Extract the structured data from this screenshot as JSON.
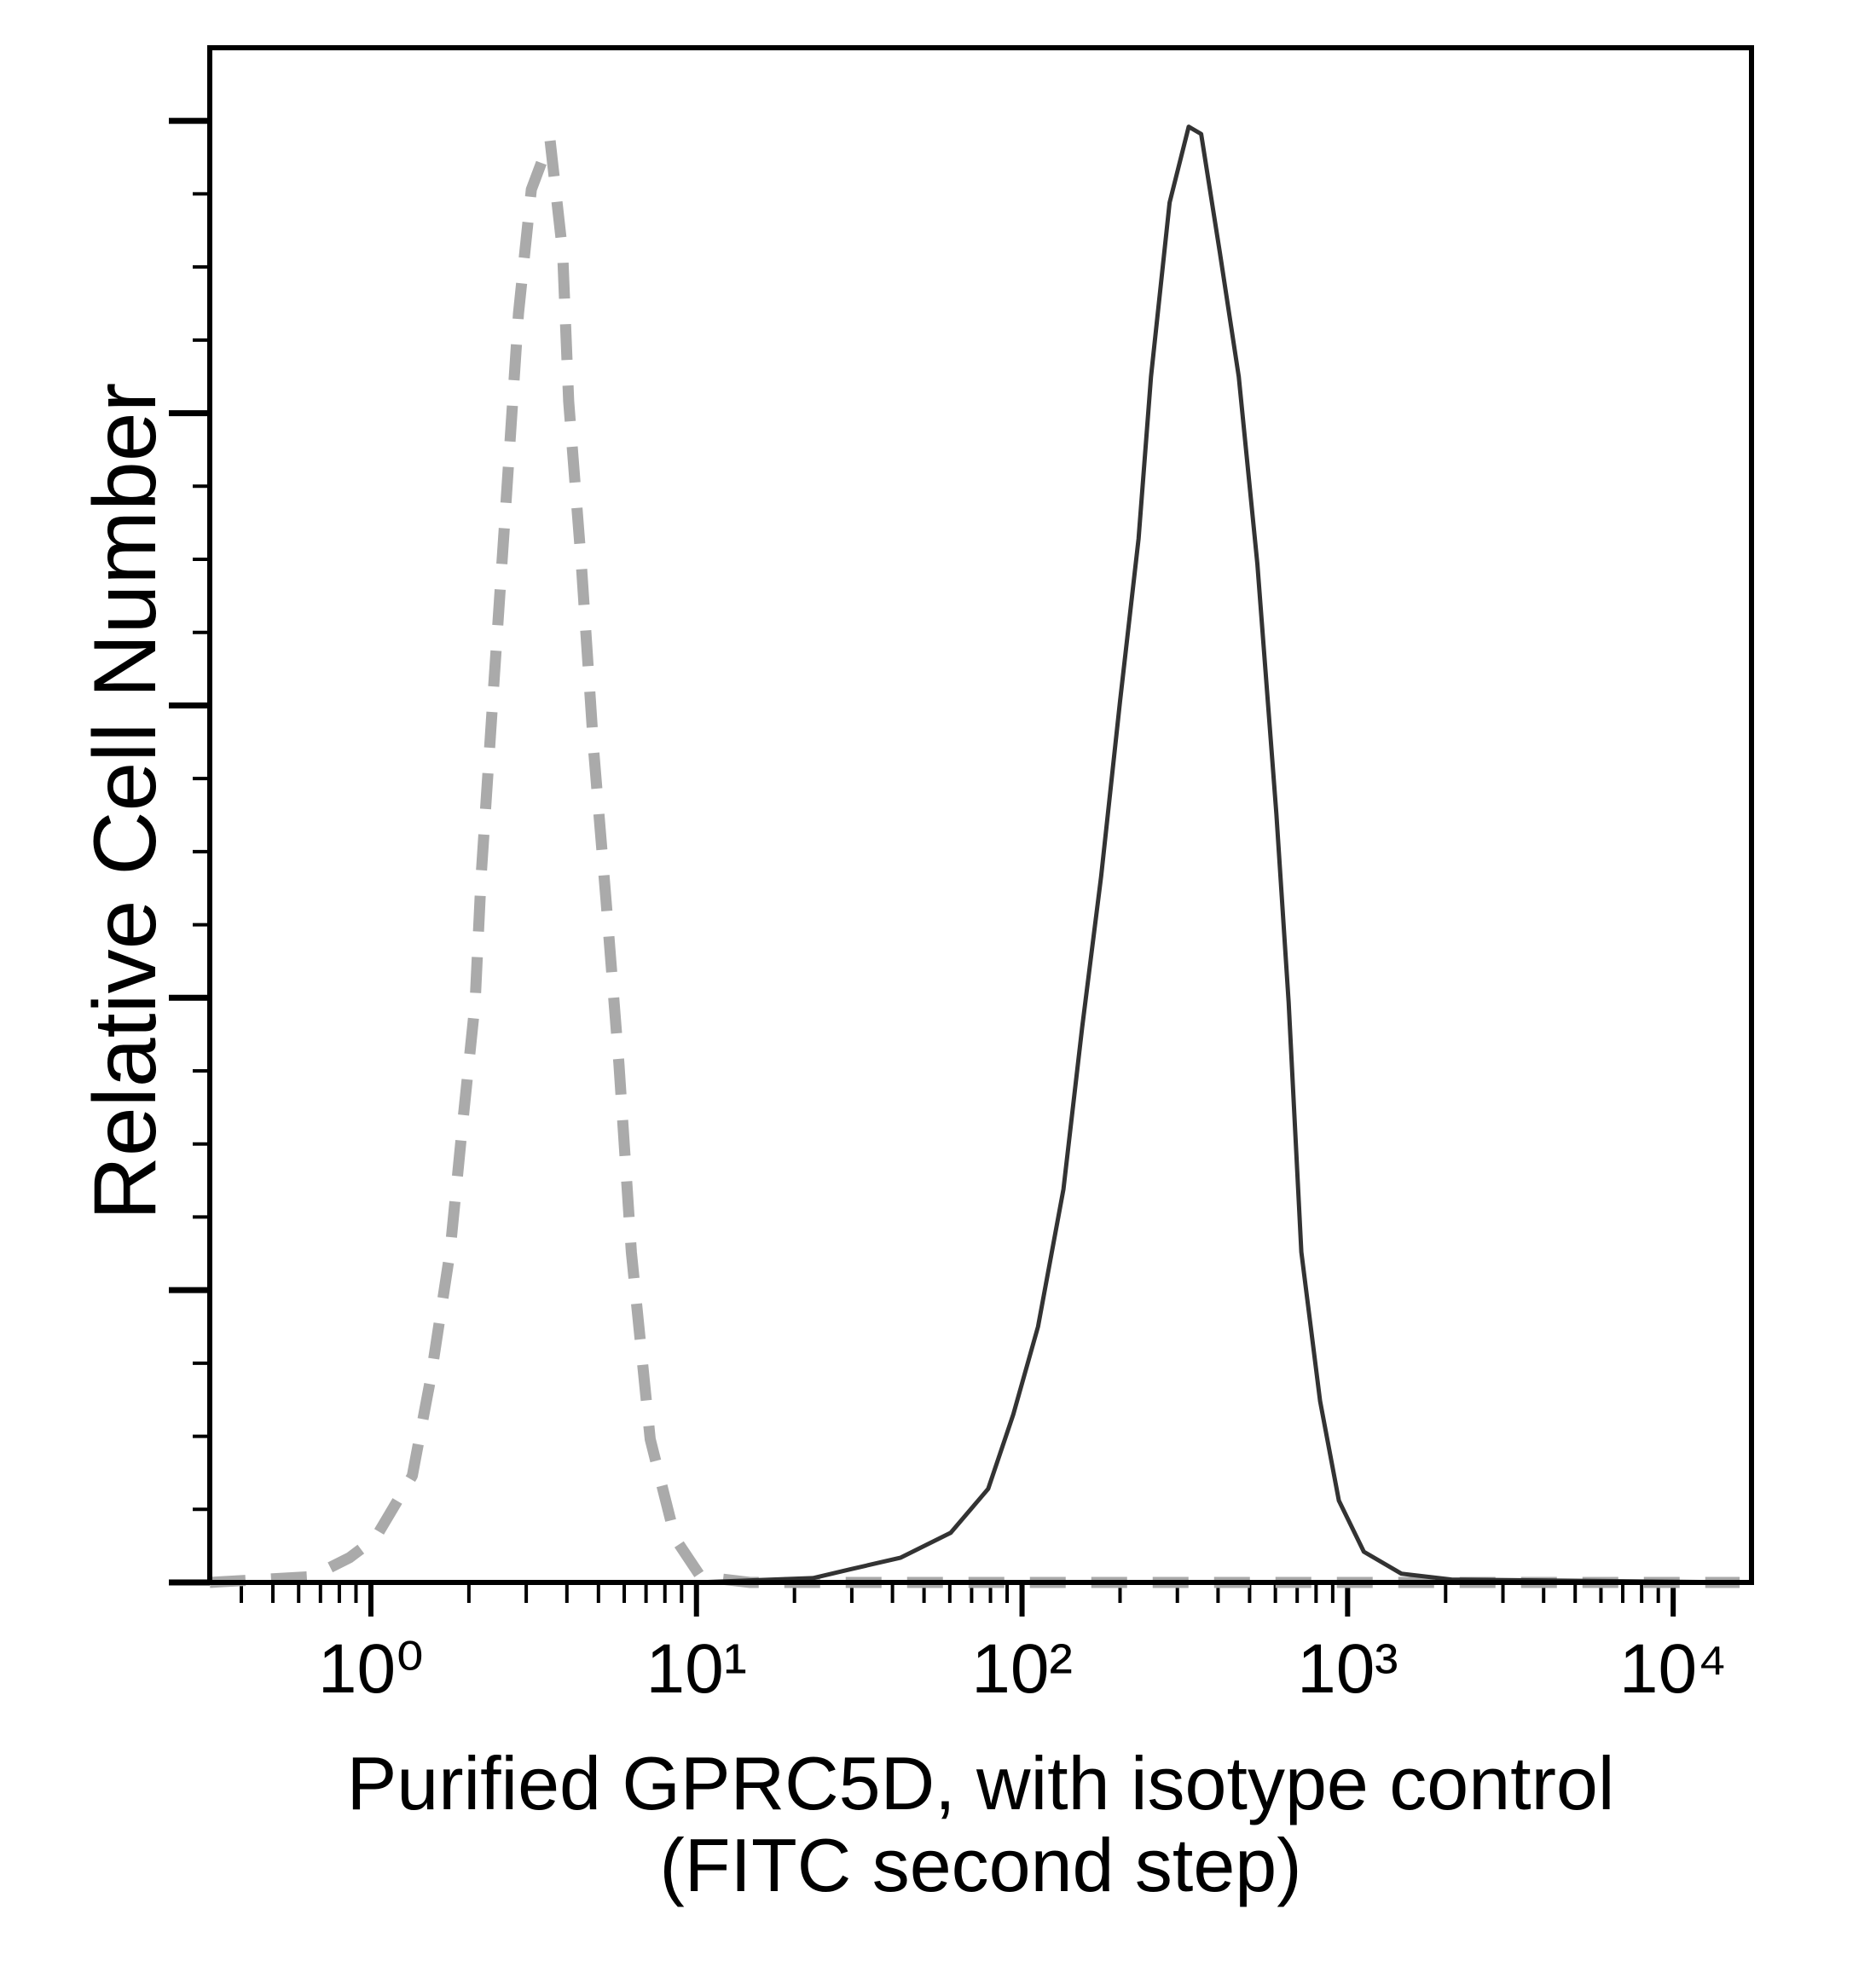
{
  "chart_data": {
    "type": "line",
    "x_label": "Purified GPRC5D, with isotype control",
    "x_label_line2": "(FITC second step)",
    "y_label": "Relative Cell Number",
    "xscale": "log",
    "grid": false,
    "xlim": [
      0.32,
      17400
    ],
    "ylim": [
      0,
      105
    ],
    "xticks": [
      {
        "value": 1,
        "label": "10⁰"
      },
      {
        "value": 10,
        "label": "10¹"
      },
      {
        "value": 100,
        "label": "10²"
      },
      {
        "value": 1000,
        "label": "10³"
      },
      {
        "value": 10000,
        "label": "10⁴"
      }
    ],
    "yticks": [
      0,
      5,
      10,
      15,
      20,
      25,
      30,
      35,
      40,
      45,
      50,
      55,
      60,
      65,
      70,
      75,
      80,
      85,
      90,
      95,
      100
    ],
    "series": [
      {
        "color": "#aaaaaa",
        "dashed": true,
        "x": [
          0.32,
          0.66,
          0.86,
          1.03,
          1.34,
          1.53,
          1.75,
          1.91,
          2.09,
          2.18,
          2.38,
          2.6,
          2.84,
          3.11,
          3.55,
          3.88,
          4.05,
          4.43,
          4.84,
          5.28,
          5.78,
          6.31,
          7.21,
          8.61,
          10.3,
          14.6,
          16000
        ],
        "values": [
          0,
          0.4,
          1.7,
          3.0,
          7.3,
          14.1,
          22.6,
          31.2,
          39.7,
          48.3,
          61.1,
          73.9,
          86.8,
          95.3,
          98.7,
          91.0,
          80.8,
          69.7,
          56.8,
          46.6,
          35.5,
          22.6,
          9.8,
          3.0,
          0.4,
          0,
          0
        ]
      },
      {
        "color": "#333333",
        "dashed": false,
        "x": [
          0.32,
          10,
          22.8,
          29.7,
          42.4,
          60.4,
          78.7,
          94,
          112,
          134,
          153,
          175,
          200,
          228,
          249,
          284,
          325,
          355,
          405,
          463,
          528,
          604,
          659,
          721,
          823,
          940,
          1122,
          1463,
          2085,
          16000
        ],
        "values": [
          0,
          0,
          0.3,
          0.9,
          1.7,
          3.4,
          6.4,
          11.5,
          17.5,
          26.9,
          38.0,
          48.3,
          60.3,
          71.4,
          82.5,
          94.4,
          99.6,
          99.1,
          91.0,
          82.5,
          69.7,
          52.6,
          39.7,
          22.6,
          12.4,
          5.6,
          2.1,
          0.6,
          0.2,
          0
        ]
      }
    ]
  }
}
